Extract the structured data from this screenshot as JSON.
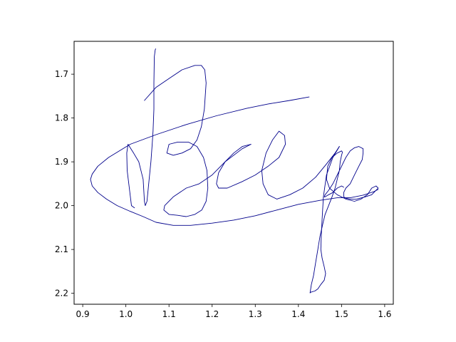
{
  "chart_data": {
    "type": "line",
    "title": "",
    "xlabel": "",
    "ylabel": "",
    "xlim": [
      0.88,
      1.62
    ],
    "ylim": [
      2.225,
      1.625
    ],
    "y_inverted": true,
    "grid": false,
    "x_ticks": [
      "0.9",
      "1.0",
      "1.1",
      "1.2",
      "1.3",
      "1.4",
      "1.5",
      "1.6"
    ],
    "x_tick_values": [
      0.9,
      1.0,
      1.1,
      1.2,
      1.3,
      1.4,
      1.5,
      1.6
    ],
    "y_ticks": [
      "1.7",
      "1.8",
      "1.9",
      "2.0",
      "2.1",
      "2.2"
    ],
    "y_tick_values": [
      1.7,
      1.8,
      1.9,
      2.0,
      2.1,
      2.2
    ],
    "series": [
      {
        "color": "#00008b",
        "strokes": [
          {
            "x": [
              1.069,
              1.068,
              1.066,
              1.065,
              1.065,
              1.063,
              1.061,
              1.058,
              1.053,
              1.049,
              1.045,
              1.043,
              1.04,
              1.03,
              1.018,
              1.005,
              1.002,
              1.003,
              1.008,
              1.013,
              1.02
            ],
            "y": [
              1.642,
              1.645,
              1.66,
              1.72,
              1.78,
              1.83,
              1.86,
              1.9,
              1.95,
              1.99,
              2.0,
              1.99,
              1.94,
              1.9,
              1.88,
              1.86,
              1.88,
              1.92,
              1.96,
              2.0,
              2.005
            ]
          },
          {
            "x": [
              1.043,
              1.07,
              1.1,
              1.13,
              1.16,
              1.175,
              1.183,
              1.186,
              1.182,
              1.175,
              1.165,
              1.15,
              1.13,
              1.11,
              1.095,
              1.1,
              1.12,
              1.145,
              1.165,
              1.18,
              1.188,
              1.19,
              1.186,
              1.176,
              1.16,
              1.14,
              1.12,
              1.1,
              1.088,
              1.09,
              1.11,
              1.14,
              1.17,
              1.2,
              1.23,
              1.27,
              1.29
            ],
            "y": [
              1.76,
              1.73,
              1.71,
              1.69,
              1.68,
              1.68,
              1.69,
              1.72,
              1.78,
              1.82,
              1.85,
              1.87,
              1.88,
              1.885,
              1.88,
              1.86,
              1.855,
              1.855,
              1.865,
              1.89,
              1.92,
              1.96,
              1.99,
              2.01,
              2.02,
              2.025,
              2.022,
              2.02,
              2.01,
              2.0,
              1.98,
              1.96,
              1.95,
              1.93,
              1.9,
              1.87,
              1.86
            ]
          },
          {
            "x": [
              1.29,
              1.27,
              1.25,
              1.23,
              1.215,
              1.21,
              1.215,
              1.235,
              1.27,
              1.3,
              1.33,
              1.355,
              1.37,
              1.368,
              1.355,
              1.34,
              1.325,
              1.315,
              1.318,
              1.33,
              1.35,
              1.38,
              1.41,
              1.44,
              1.465,
              1.485,
              1.495
            ],
            "y": [
              1.86,
              1.865,
              1.88,
              1.9,
              1.925,
              1.95,
              1.96,
              1.96,
              1.945,
              1.93,
              1.91,
              1.89,
              1.86,
              1.84,
              1.83,
              1.85,
              1.88,
              1.92,
              1.95,
              1.975,
              1.985,
              1.975,
              1.96,
              1.935,
              1.905,
              1.88,
              1.865
            ]
          },
          {
            "x": [
              1.495,
              1.48,
              1.465,
              1.458,
              1.455,
              1.453,
              1.452,
              1.455,
              1.46,
              1.463,
              1.46,
              1.452,
              1.445,
              1.438,
              1.43,
              1.427
            ],
            "y": [
              1.865,
              1.89,
              1.93,
              1.98,
              2.03,
              2.07,
              2.1,
              2.12,
              2.14,
              2.155,
              2.17,
              2.18,
              2.19,
              2.195,
              2.197,
              2.199
            ]
          },
          {
            "x": [
              1.427,
              1.43,
              1.435,
              1.44,
              1.445,
              1.45,
              1.457,
              1.462,
              1.47,
              1.478,
              1.485,
              1.49,
              1.495,
              1.497,
              1.5,
              1.502,
              1.5,
              1.49,
              1.478,
              1.468,
              1.465,
              1.472,
              1.49,
              1.51,
              1.53,
              1.545,
              1.56,
              1.57,
              1.58,
              1.585,
              1.58,
              1.57,
              1.555,
              1.535,
              1.52,
              1.51,
              1.505,
              1.505,
              1.51,
              1.52,
              1.53,
              1.54,
              1.548,
              1.55,
              1.55,
              1.54,
              1.53,
              1.52,
              1.51,
              1.5,
              1.49,
              1.48,
              1.47,
              1.462,
              1.46,
              1.462,
              1.47,
              1.48,
              1.49,
              1.5,
              1.505
            ],
            "y": [
              2.199,
              2.18,
              2.16,
              2.13,
              2.1,
              2.07,
              2.04,
              2.02,
              2.0,
              1.98,
              1.96,
              1.94,
              1.92,
              1.9,
              1.885,
              1.878,
              1.875,
              1.88,
              1.89,
              1.91,
              1.94,
              1.96,
              1.975,
              1.985,
              1.99,
              1.985,
              1.975,
              1.96,
              1.955,
              1.96,
              1.965,
              1.975,
              1.98,
              1.985,
              1.985,
              1.983,
              1.98,
              1.97,
              1.96,
              1.95,
              1.93,
              1.91,
              1.895,
              1.88,
              1.87,
              1.865,
              1.868,
              1.875,
              1.89,
              1.91,
              1.93,
              1.95,
              1.965,
              1.975,
              1.98,
              1.98,
              1.975,
              1.97,
              1.96,
              1.955,
              1.958
            ]
          },
          {
            "x": [
              1.425,
              1.38,
              1.33,
              1.28,
              1.21,
              1.14,
              1.07,
              1.01,
              0.96,
              0.935,
              0.922,
              0.918,
              0.922,
              0.935,
              0.955,
              0.98,
              1.01,
              1.04,
              1.07,
              1.11,
              1.15,
              1.2,
              1.25,
              1.3,
              1.35,
              1.4,
              1.45,
              1.49,
              1.52,
              1.55,
              1.575,
              1.585
            ],
            "y": [
              1.752,
              1.76,
              1.768,
              1.778,
              1.795,
              1.815,
              1.838,
              1.86,
              1.89,
              1.91,
              1.928,
              1.94,
              1.955,
              1.97,
              1.985,
              2.0,
              2.013,
              2.025,
              2.038,
              2.045,
              2.045,
              2.04,
              2.033,
              2.023,
              2.01,
              1.997,
              1.988,
              1.982,
              1.982,
              1.976,
              1.968,
              1.963
            ]
          }
        ]
      }
    ]
  }
}
